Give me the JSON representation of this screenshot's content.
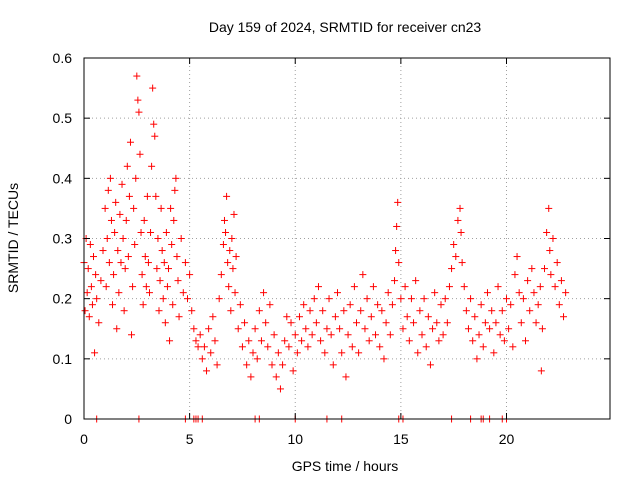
{
  "chart_data": {
    "type": "scatter",
    "title": "Day 159 of 2024, SRMTID for receiver cn23",
    "xlabel": "GPS time / hours",
    "ylabel": "SRMTID / TECUs",
    "xlim": [
      0,
      24.9
    ],
    "ylim": [
      0,
      0.6
    ],
    "xticks": [
      0,
      5,
      10,
      15,
      20
    ],
    "xtick_labels": [
      "0",
      "5",
      "10",
      "15",
      "20"
    ],
    "yticks": [
      0,
      0.1,
      0.2,
      0.3,
      0.4,
      0.5,
      0.6
    ],
    "ytick_labels": [
      "0",
      "0.1",
      "0.2",
      "0.3",
      "0.4",
      "0.5",
      "0.6"
    ],
    "grid": true,
    "marker": "+",
    "color": "#ff0000",
    "series": [
      {
        "name": "SRMTID",
        "points": [
          [
            0.0,
            0.26
          ],
          [
            0.05,
            0.18
          ],
          [
            0.1,
            0.3
          ],
          [
            0.15,
            0.21
          ],
          [
            0.2,
            0.25
          ],
          [
            0.25,
            0.17
          ],
          [
            0.3,
            0.29
          ],
          [
            0.35,
            0.22
          ],
          [
            0.4,
            0.19
          ],
          [
            0.45,
            0.27
          ],
          [
            0.5,
            0.11
          ],
          [
            0.55,
            0.24
          ],
          [
            0.6,
            0.2
          ],
          [
            0.7,
            0.16
          ],
          [
            0.8,
            0.23
          ],
          [
            0.9,
            0.28
          ],
          [
            1.0,
            0.35
          ],
          [
            1.05,
            0.22
          ],
          [
            1.1,
            0.3
          ],
          [
            1.15,
            0.38
          ],
          [
            1.2,
            0.26
          ],
          [
            1.25,
            0.4
          ],
          [
            1.3,
            0.33
          ],
          [
            1.35,
            0.19
          ],
          [
            1.4,
            0.24
          ],
          [
            1.45,
            0.31
          ],
          [
            1.5,
            0.36
          ],
          [
            1.55,
            0.15
          ],
          [
            1.6,
            0.28
          ],
          [
            1.65,
            0.21
          ],
          [
            1.7,
            0.34
          ],
          [
            1.75,
            0.26
          ],
          [
            1.8,
            0.39
          ],
          [
            1.85,
            0.3
          ],
          [
            1.9,
            0.18
          ],
          [
            1.95,
            0.25
          ],
          [
            2.0,
            0.33
          ],
          [
            2.05,
            0.42
          ],
          [
            2.1,
            0.27
          ],
          [
            2.15,
            0.37
          ],
          [
            2.2,
            0.46
          ],
          [
            2.25,
            0.14
          ],
          [
            2.3,
            0.22
          ],
          [
            2.35,
            0.35
          ],
          [
            2.4,
            0.29
          ],
          [
            2.45,
            0.4
          ],
          [
            2.5,
            0.57
          ],
          [
            2.55,
            0.53
          ],
          [
            2.6,
            0.51
          ],
          [
            2.65,
            0.44
          ],
          [
            2.7,
            0.31
          ],
          [
            2.75,
            0.24
          ],
          [
            2.8,
            0.19
          ],
          [
            2.85,
            0.33
          ],
          [
            2.9,
            0.27
          ],
          [
            2.95,
            0.22
          ],
          [
            3.0,
            0.37
          ],
          [
            3.05,
            0.26
          ],
          [
            3.1,
            0.21
          ],
          [
            3.15,
            0.31
          ],
          [
            3.2,
            0.42
          ],
          [
            3.25,
            0.55
          ],
          [
            3.3,
            0.49
          ],
          [
            3.35,
            0.47
          ],
          [
            3.4,
            0.37
          ],
          [
            3.45,
            0.25
          ],
          [
            3.5,
            0.3
          ],
          [
            3.55,
            0.18
          ],
          [
            3.6,
            0.23
          ],
          [
            3.65,
            0.35
          ],
          [
            3.7,
            0.28
          ],
          [
            3.75,
            0.2
          ],
          [
            3.8,
            0.26
          ],
          [
            3.85,
            0.16
          ],
          [
            3.9,
            0.31
          ],
          [
            3.95,
            0.22
          ],
          [
            4.0,
            0.25
          ],
          [
            4.05,
            0.13
          ],
          [
            4.1,
            0.35
          ],
          [
            4.15,
            0.29
          ],
          [
            4.2,
            0.19
          ],
          [
            4.25,
            0.33
          ],
          [
            4.3,
            0.38
          ],
          [
            4.35,
            0.4
          ],
          [
            4.4,
            0.27
          ],
          [
            4.45,
            0.23
          ],
          [
            4.5,
            0.17
          ],
          [
            4.6,
            0.3
          ],
          [
            4.7,
            0.21
          ],
          [
            4.8,
            0.26
          ],
          [
            4.9,
            0.2
          ],
          [
            5.0,
            0.24
          ],
          [
            5.1,
            0.18
          ],
          [
            5.2,
            0.15
          ],
          [
            5.3,
            0.13
          ],
          [
            5.4,
            0.12
          ],
          [
            5.5,
            0.14
          ],
          [
            5.6,
            0.1
          ],
          [
            5.7,
            0.12
          ],
          [
            5.8,
            0.08
          ],
          [
            5.9,
            0.15
          ],
          [
            6.0,
            0.11
          ],
          [
            6.1,
            0.17
          ],
          [
            6.2,
            0.13
          ],
          [
            6.3,
            0.09
          ],
          [
            6.4,
            0.2
          ],
          [
            6.5,
            0.24
          ],
          [
            6.6,
            0.29
          ],
          [
            6.65,
            0.33
          ],
          [
            6.7,
            0.31
          ],
          [
            6.75,
            0.37
          ],
          [
            6.8,
            0.26
          ],
          [
            6.85,
            0.22
          ],
          [
            6.9,
            0.28
          ],
          [
            6.95,
            0.18
          ],
          [
            7.0,
            0.3
          ],
          [
            7.05,
            0.25
          ],
          [
            7.1,
            0.34
          ],
          [
            7.15,
            0.21
          ],
          [
            7.2,
            0.27
          ],
          [
            7.3,
            0.15
          ],
          [
            7.4,
            0.19
          ],
          [
            7.5,
            0.12
          ],
          [
            7.6,
            0.16
          ],
          [
            7.7,
            0.09
          ],
          [
            7.8,
            0.13
          ],
          [
            7.9,
            0.07
          ],
          [
            8.0,
            0.11
          ],
          [
            8.1,
            0.15
          ],
          [
            8.2,
            0.1
          ],
          [
            8.3,
            0.18
          ],
          [
            8.4,
            0.13
          ],
          [
            8.5,
            0.21
          ],
          [
            8.6,
            0.16
          ],
          [
            8.7,
            0.12
          ],
          [
            8.8,
            0.19
          ],
          [
            8.9,
            0.09
          ],
          [
            9.0,
            0.14
          ],
          [
            9.1,
            0.07
          ],
          [
            9.2,
            0.11
          ],
          [
            9.3,
            0.05
          ],
          [
            9.4,
            0.09
          ],
          [
            9.5,
            0.13
          ],
          [
            9.6,
            0.17
          ],
          [
            9.7,
            0.12
          ],
          [
            9.8,
            0.16
          ],
          [
            9.9,
            0.08
          ],
          [
            10.0,
            0.14
          ],
          [
            10.1,
            0.11
          ],
          [
            10.2,
            0.17
          ],
          [
            10.3,
            0.13
          ],
          [
            10.4,
            0.19
          ],
          [
            10.5,
            0.15
          ],
          [
            10.6,
            0.12
          ],
          [
            10.7,
            0.18
          ],
          [
            10.8,
            0.14
          ],
          [
            10.9,
            0.2
          ],
          [
            11.0,
            0.16
          ],
          [
            11.1,
            0.22
          ],
          [
            11.2,
            0.13
          ],
          [
            11.3,
            0.18
          ],
          [
            11.4,
            0.11
          ],
          [
            11.5,
            0.15
          ],
          [
            11.6,
            0.2
          ],
          [
            11.7,
            0.14
          ],
          [
            11.8,
            0.09
          ],
          [
            11.9,
            0.17
          ],
          [
            12.0,
            0.21
          ],
          [
            12.1,
            0.15
          ],
          [
            12.2,
            0.11
          ],
          [
            12.3,
            0.18
          ],
          [
            12.4,
            0.07
          ],
          [
            12.5,
            0.14
          ],
          [
            12.6,
            0.19
          ],
          [
            12.7,
            0.12
          ],
          [
            12.8,
            0.22
          ],
          [
            12.9,
            0.16
          ],
          [
            13.0,
            0.11
          ],
          [
            13.1,
            0.18
          ],
          [
            13.2,
            0.24
          ],
          [
            13.3,
            0.15
          ],
          [
            13.4,
            0.2
          ],
          [
            13.5,
            0.13
          ],
          [
            13.6,
            0.17
          ],
          [
            13.7,
            0.22
          ],
          [
            13.8,
            0.14
          ],
          [
            13.9,
            0.19
          ],
          [
            14.0,
            0.12
          ],
          [
            14.1,
            0.18
          ],
          [
            14.2,
            0.1
          ],
          [
            14.3,
            0.16
          ],
          [
            14.4,
            0.21
          ],
          [
            14.5,
            0.14
          ],
          [
            14.6,
            0.19
          ],
          [
            14.7,
            0.23
          ],
          [
            14.75,
            0.28
          ],
          [
            14.8,
            0.32
          ],
          [
            14.85,
            0.36
          ],
          [
            14.9,
            0.26
          ],
          [
            15.0,
            0.2
          ],
          [
            15.1,
            0.15
          ],
          [
            15.2,
            0.22
          ],
          [
            15.3,
            0.17
          ],
          [
            15.4,
            0.13
          ],
          [
            15.5,
            0.2
          ],
          [
            15.6,
            0.16
          ],
          [
            15.7,
            0.23
          ],
          [
            15.8,
            0.11
          ],
          [
            15.9,
            0.18
          ],
          [
            16.0,
            0.14
          ],
          [
            16.1,
            0.2
          ],
          [
            16.2,
            0.12
          ],
          [
            16.3,
            0.17
          ],
          [
            16.4,
            0.09
          ],
          [
            16.5,
            0.15
          ],
          [
            16.6,
            0.21
          ],
          [
            16.7,
            0.16
          ],
          [
            16.8,
            0.13
          ],
          [
            16.9,
            0.19
          ],
          [
            17.0,
            0.14
          ],
          [
            17.1,
            0.2
          ],
          [
            17.2,
            0.16
          ],
          [
            17.3,
            0.22
          ],
          [
            17.4,
            0.25
          ],
          [
            17.5,
            0.29
          ],
          [
            17.6,
            0.27
          ],
          [
            17.7,
            0.33
          ],
          [
            17.8,
            0.35
          ],
          [
            17.85,
            0.31
          ],
          [
            17.9,
            0.26
          ],
          [
            18.0,
            0.22
          ],
          [
            18.1,
            0.18
          ],
          [
            18.2,
            0.15
          ],
          [
            18.3,
            0.2
          ],
          [
            18.4,
            0.13
          ],
          [
            18.5,
            0.17
          ],
          [
            18.6,
            0.1
          ],
          [
            18.7,
            0.14
          ],
          [
            18.8,
            0.19
          ],
          [
            18.9,
            0.12
          ],
          [
            19.0,
            0.16
          ],
          [
            19.1,
            0.21
          ],
          [
            19.2,
            0.15
          ],
          [
            19.3,
            0.18
          ],
          [
            19.4,
            0.11
          ],
          [
            19.5,
            0.16
          ],
          [
            19.6,
            0.22
          ],
          [
            19.7,
            0.14
          ],
          [
            19.8,
            0.18
          ],
          [
            19.9,
            0.13
          ],
          [
            20.0,
            0.2
          ],
          [
            20.1,
            0.15
          ],
          [
            20.2,
            0.19
          ],
          [
            20.3,
            0.12
          ],
          [
            20.4,
            0.24
          ],
          [
            20.5,
            0.27
          ],
          [
            20.6,
            0.21
          ],
          [
            20.7,
            0.16
          ],
          [
            20.8,
            0.2
          ],
          [
            20.9,
            0.13
          ],
          [
            21.0,
            0.23
          ],
          [
            21.1,
            0.18
          ],
          [
            21.2,
            0.25
          ],
          [
            21.3,
            0.21
          ],
          [
            21.4,
            0.16
          ],
          [
            21.5,
            0.19
          ],
          [
            21.6,
            0.22
          ],
          [
            21.65,
            0.08
          ],
          [
            21.7,
            0.15
          ],
          [
            21.8,
            0.25
          ],
          [
            21.9,
            0.31
          ],
          [
            22.0,
            0.35
          ],
          [
            22.05,
            0.28
          ],
          [
            22.1,
            0.24
          ],
          [
            22.2,
            0.3
          ],
          [
            22.3,
            0.22
          ],
          [
            22.4,
            0.26
          ],
          [
            22.5,
            0.19
          ],
          [
            22.6,
            0.23
          ],
          [
            22.7,
            0.17
          ],
          [
            22.8,
            0.21
          ]
        ]
      }
    ],
    "zero_points": [
      0.6,
      2.6,
      4.8,
      5.2,
      5.3,
      5.4,
      5.6,
      8.1,
      8.3,
      10.0,
      11.5,
      12.2,
      14.9,
      15.1,
      17.4,
      18.3,
      18.8,
      18.9,
      19.2,
      19.8,
      20.0
    ]
  }
}
